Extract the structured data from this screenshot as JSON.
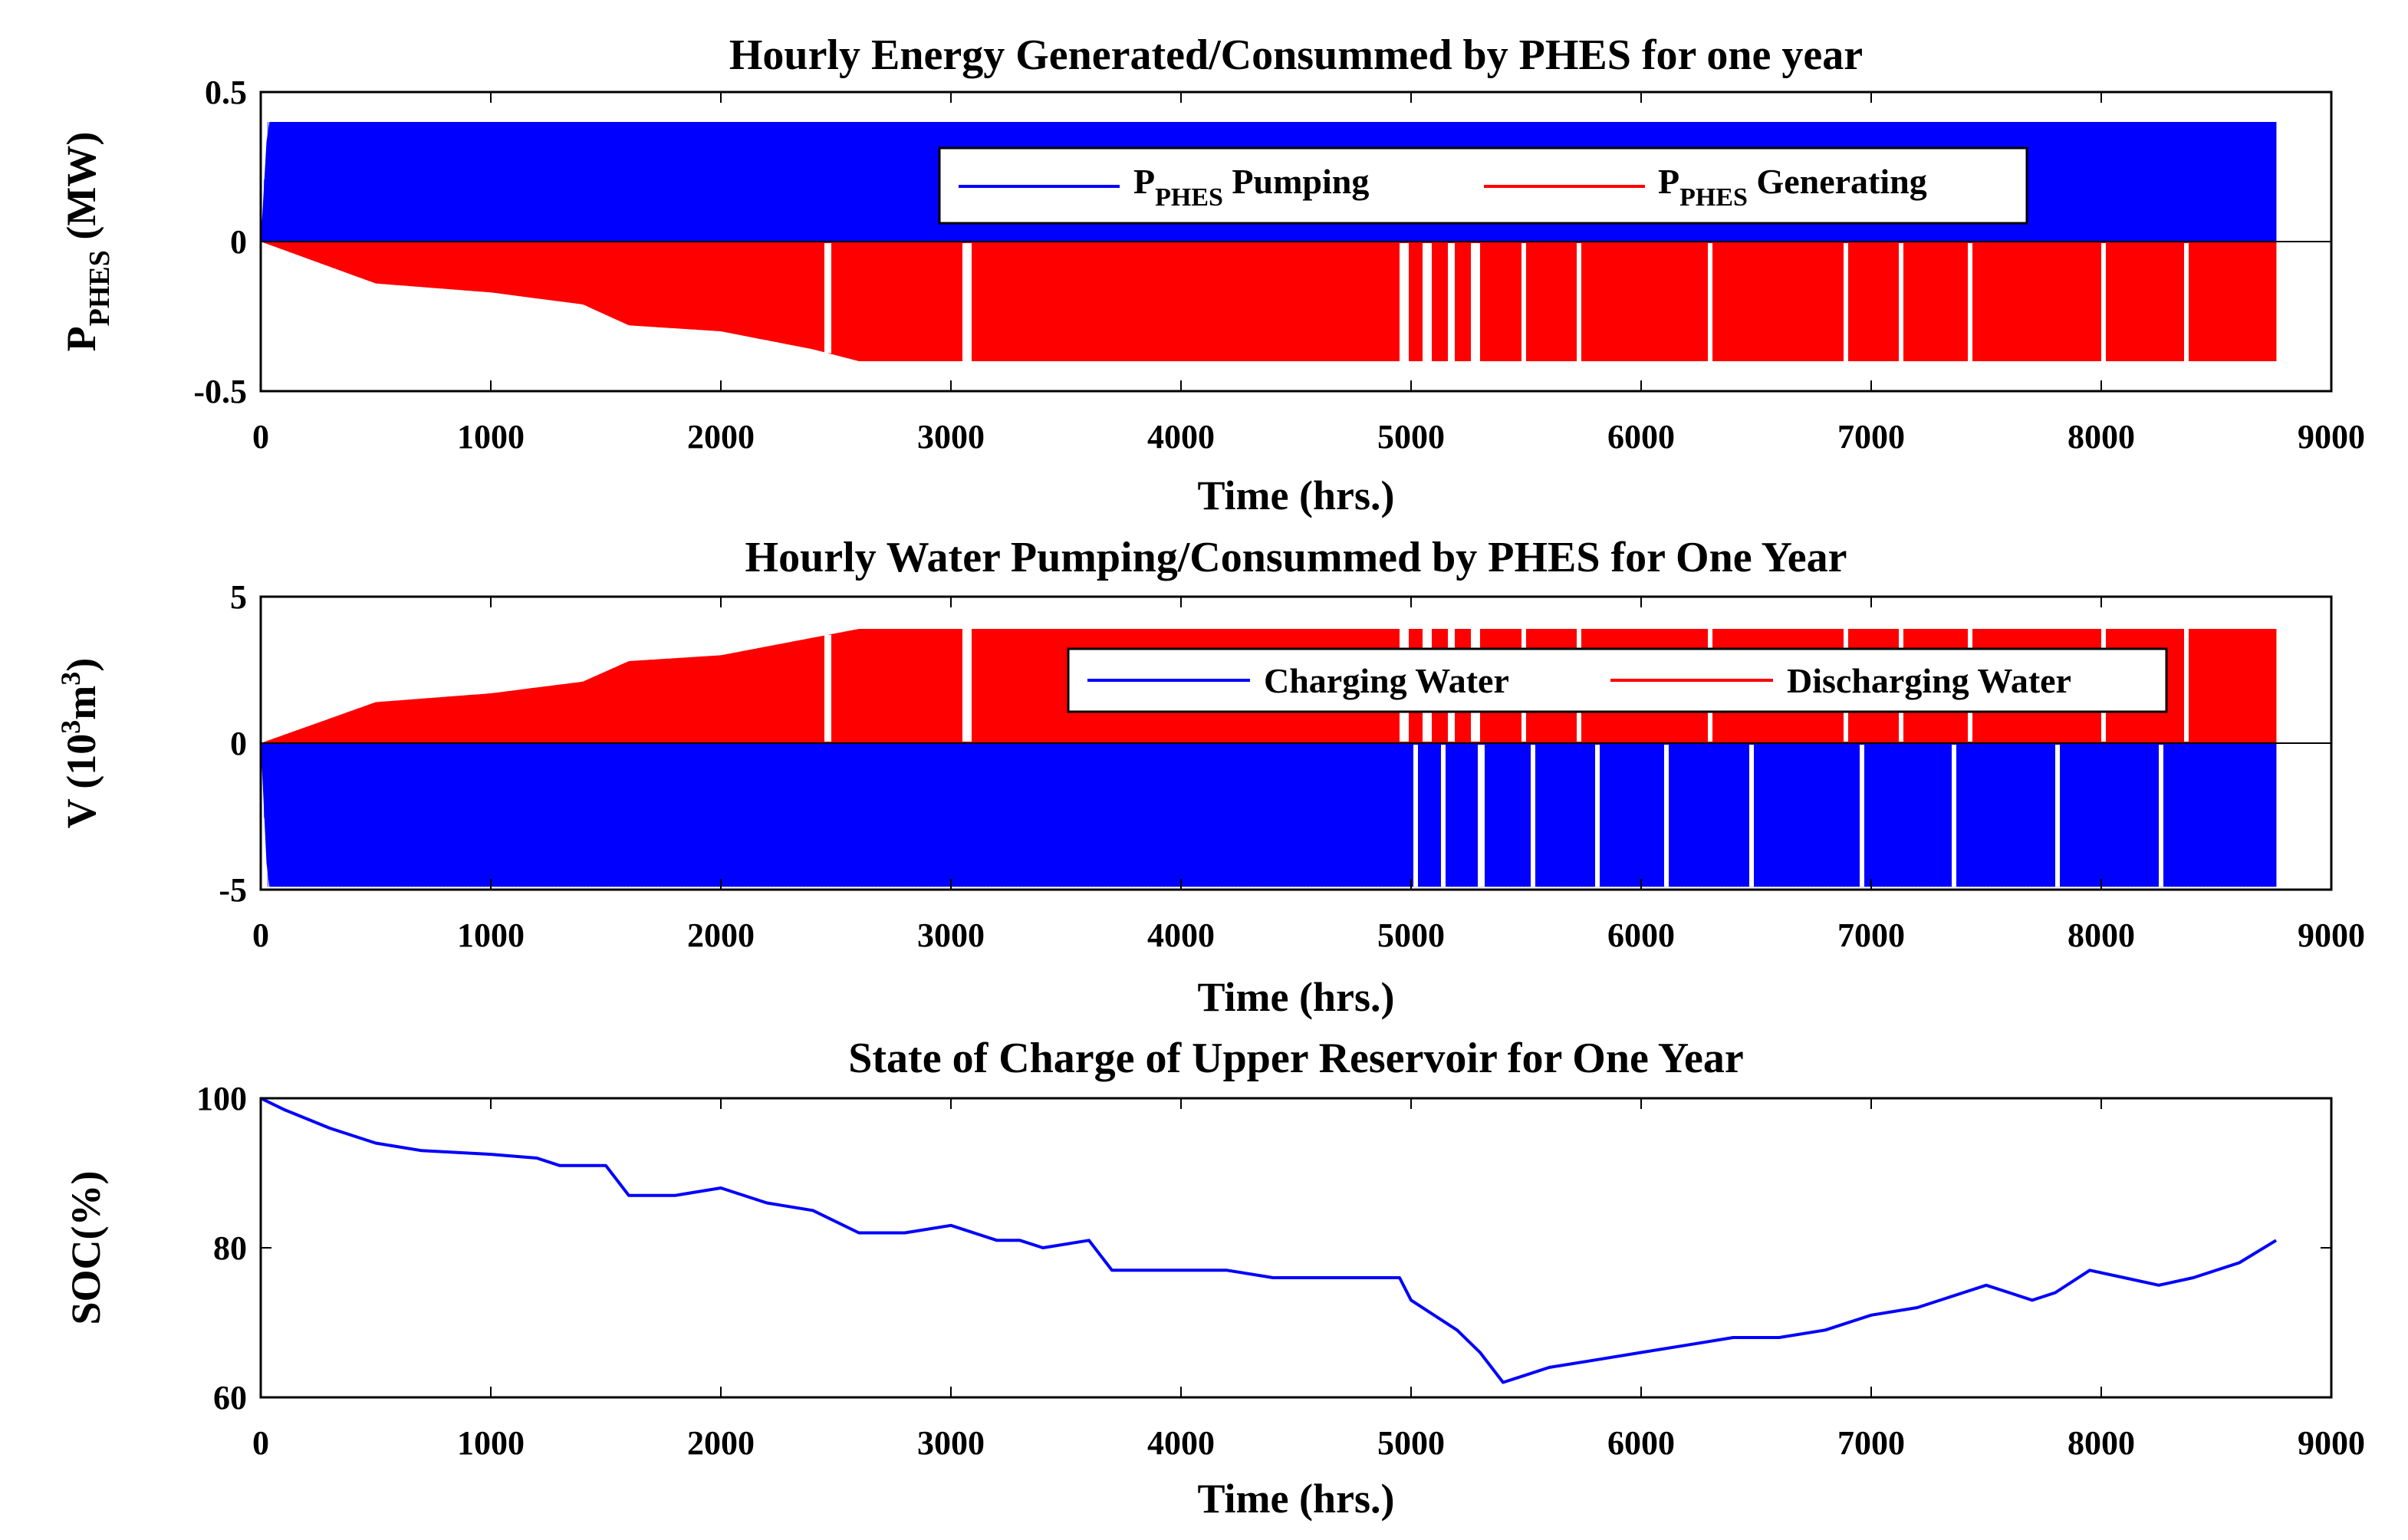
{
  "chart_data": [
    {
      "id": "p1",
      "type": "bar",
      "title": "Hourly Energy Generated/Consummed by PHES for one year",
      "xlabel": "Time (hrs.)",
      "ylabel_main": "P",
      "ylabel_sub": "PHES",
      "ylabel_unit": " (MW)",
      "xlim": [
        0,
        9000
      ],
      "ylim": [
        -0.5,
        0.5
      ],
      "xticks": [
        0,
        1000,
        2000,
        3000,
        4000,
        5000,
        6000,
        7000,
        8000,
        9000
      ],
      "yticks": [
        -0.5,
        0,
        0.5
      ],
      "ytick_labels": [
        "-0.5",
        "0",
        "0.5"
      ],
      "x_end": 8760,
      "legend": {
        "placement": "upper-right",
        "entries": [
          {
            "main": "P",
            "sub": "PHES",
            "rest": " Pumping",
            "color": "#0000ff"
          },
          {
            "main": "P",
            "sub": "PHES",
            "rest": " Generating",
            "color": "#ff0000"
          }
        ]
      },
      "series": [
        {
          "name": "P PHES Pumping",
          "color": "#0000ff",
          "envelope_x": [
            0,
            30,
            8760
          ],
          "envelope_y": [
            0,
            0.4,
            0.4
          ]
        },
        {
          "name": "P PHES Generating",
          "color": "#ff0000",
          "envelope_x": [
            0,
            500,
            1000,
            1400,
            1600,
            2000,
            2400,
            2600,
            3000,
            5000,
            8760
          ],
          "envelope_y": [
            0,
            -0.14,
            -0.17,
            -0.21,
            -0.28,
            -0.3,
            -0.36,
            -0.4,
            -0.4,
            -0.4,
            -0.4
          ],
          "gaps": [
            [
              2450,
              2480
            ],
            [
              3050,
              3090
            ],
            [
              4950,
              4990
            ],
            [
              5050,
              5090
            ],
            [
              5160,
              5190
            ],
            [
              5260,
              5300
            ],
            [
              5480,
              5500
            ],
            [
              5720,
              5740
            ],
            [
              6290,
              6310
            ],
            [
              6880,
              6900
            ],
            [
              7120,
              7140
            ],
            [
              7420,
              7440
            ],
            [
              8000,
              8020
            ],
            [
              8360,
              8380
            ]
          ]
        }
      ]
    },
    {
      "id": "p2",
      "type": "bar",
      "title": "Hourly Water Pumping/Consummed by PHES for One Year",
      "xlabel": "Time (hrs.)",
      "ylabel_main": "V (10",
      "ylabel_sup1": "3",
      "ylabel_mid": "m",
      "ylabel_sup2": "3",
      "ylabel_end": ")",
      "xlim": [
        0,
        9000
      ],
      "ylim": [
        -5,
        5
      ],
      "xticks": [
        0,
        1000,
        2000,
        3000,
        4000,
        5000,
        6000,
        7000,
        8000,
        9000
      ],
      "yticks": [
        -5,
        0,
        5
      ],
      "ytick_labels": [
        "-5",
        "0",
        "5"
      ],
      "x_end": 8760,
      "legend": {
        "placement": "upper-right",
        "entries": [
          {
            "label": "Charging Water",
            "color": "#0000ff"
          },
          {
            "label": "Discharging Water",
            "color": "#ff0000"
          }
        ]
      },
      "series": [
        {
          "name": "Charging Water",
          "color": "#0000ff",
          "envelope_x": [
            0,
            30,
            8760
          ],
          "envelope_y": [
            0,
            -4.9,
            -4.9
          ],
          "gaps": [
            [
              5010,
              5030
            ],
            [
              5130,
              5150
            ],
            [
              5290,
              5320
            ],
            [
              5520,
              5540
            ],
            [
              5800,
              5820
            ],
            [
              6100,
              6120
            ],
            [
              6470,
              6490
            ],
            [
              6950,
              6970
            ],
            [
              7350,
              7370
            ],
            [
              7800,
              7820
            ],
            [
              8250,
              8270
            ]
          ]
        },
        {
          "name": "Discharging Water",
          "color": "#ff0000",
          "envelope_x": [
            0,
            500,
            1000,
            1400,
            1600,
            2000,
            2400,
            2600,
            3000,
            5000,
            8760
          ],
          "envelope_y": [
            0,
            1.4,
            1.7,
            2.1,
            2.8,
            3.0,
            3.6,
            3.9,
            3.9,
            3.9,
            3.9
          ],
          "gaps": [
            [
              2450,
              2480
            ],
            [
              3050,
              3090
            ],
            [
              4950,
              4990
            ],
            [
              5050,
              5090
            ],
            [
              5160,
              5190
            ],
            [
              5260,
              5300
            ],
            [
              5480,
              5500
            ],
            [
              5720,
              5740
            ],
            [
              6290,
              6310
            ],
            [
              6880,
              6900
            ],
            [
              7120,
              7140
            ],
            [
              7420,
              7440
            ],
            [
              8000,
              8020
            ],
            [
              8360,
              8380
            ]
          ]
        }
      ]
    },
    {
      "id": "p3",
      "type": "line",
      "title": "State of Charge of Upper Reservoir for One Year",
      "xlabel": "Time (hrs.)",
      "ylabel": "SOC(%)",
      "xlim": [
        0,
        9000
      ],
      "ylim": [
        60,
        100
      ],
      "xticks": [
        0,
        1000,
        2000,
        3000,
        4000,
        5000,
        6000,
        7000,
        8000,
        9000
      ],
      "yticks": [
        60,
        80,
        100
      ],
      "ytick_labels": [
        "60",
        "80",
        "100"
      ],
      "series": [
        {
          "name": "SOC",
          "color": "#0000ff",
          "x": [
            0,
            100,
            300,
            500,
            700,
            1000,
            1200,
            1300,
            1500,
            1600,
            1800,
            2000,
            2200,
            2400,
            2600,
            2800,
            3000,
            3200,
            3300,
            3400,
            3600,
            3700,
            3900,
            4000,
            4200,
            4400,
            4600,
            4800,
            4950,
            5000,
            5100,
            5200,
            5300,
            5400,
            5500,
            5600,
            5800,
            6000,
            6200,
            6400,
            6600,
            6800,
            7000,
            7200,
            7400,
            7500,
            7600,
            7700,
            7800,
            7950,
            8100,
            8250,
            8400,
            8600,
            8760
          ],
          "y": [
            100,
            98.5,
            96,
            94,
            93,
            92.5,
            92,
            91,
            91,
            87,
            87,
            88,
            86,
            85,
            82,
            82,
            83,
            81,
            81,
            80,
            81,
            77,
            77,
            77,
            77,
            76,
            76,
            76,
            76,
            73,
            71,
            69,
            66,
            62,
            63,
            64,
            65,
            66,
            67,
            68,
            68,
            69,
            71,
            72,
            74,
            75,
            74,
            73,
            74,
            77,
            76,
            75,
            76,
            78,
            81
          ]
        }
      ]
    }
  ]
}
